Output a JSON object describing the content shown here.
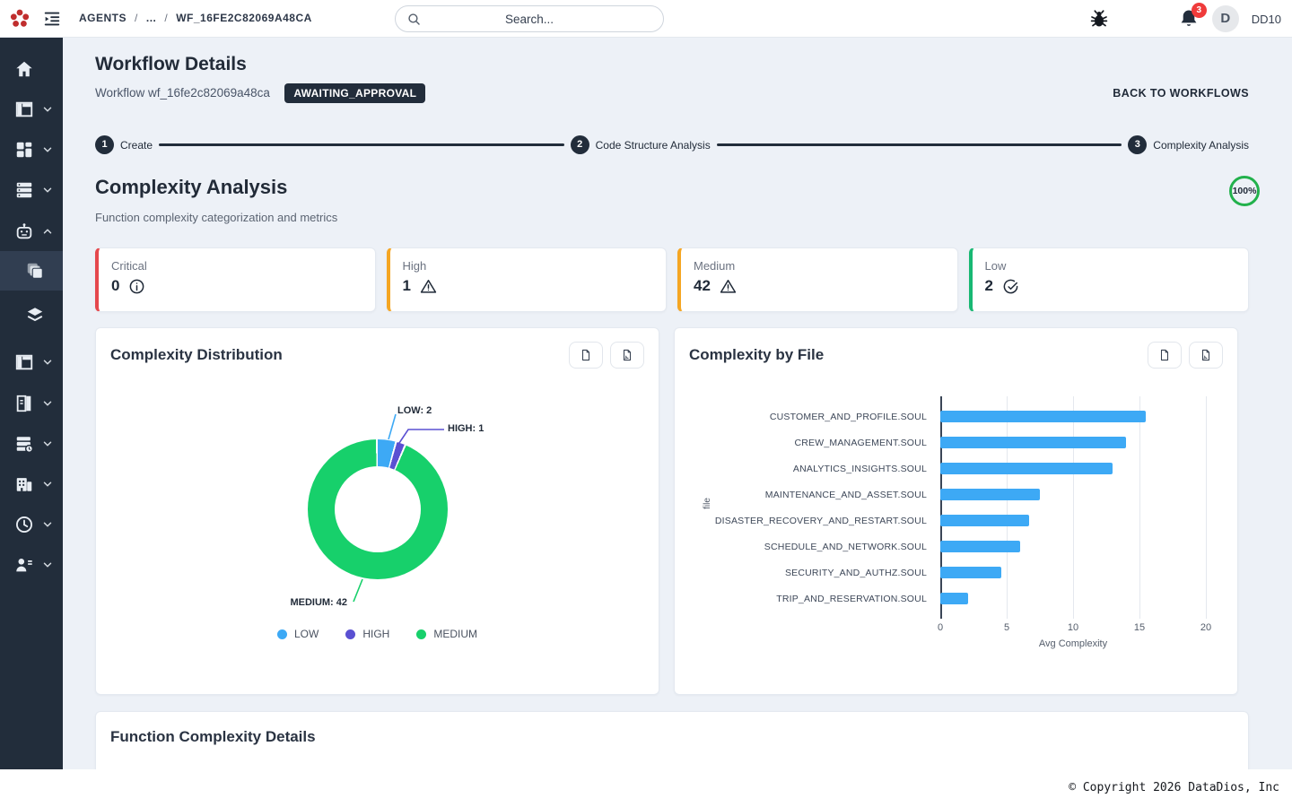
{
  "navbar": {
    "breadcrumb": [
      "AGENTS",
      "...",
      "WF_16FE2C82069A48CA"
    ],
    "breadcrumb_separator": "/",
    "search_placeholder": "Search...",
    "notification_count": "3",
    "avatar_initial": "D",
    "username": "DD10"
  },
  "sidebar": {
    "items": [
      {
        "id": "home",
        "icon": "home-icon"
      },
      {
        "id": "panels",
        "icon": "panel-layout-icon",
        "chevron": "down"
      },
      {
        "id": "apps",
        "icon": "grid-icon",
        "chevron": "down"
      },
      {
        "id": "servers",
        "icon": "server-icon",
        "chevron": "down"
      },
      {
        "id": "agents",
        "icon": "robot-icon",
        "chevron": "up"
      },
      {
        "id": "workflows",
        "icon": "copies-icon",
        "child": true,
        "active": true
      },
      {
        "id": "layers",
        "icon": "layers-icon",
        "child": true
      },
      {
        "id": "boards",
        "icon": "panel-layout-icon",
        "chevron": "down"
      },
      {
        "id": "journal",
        "icon": "book-icon",
        "chevron": "down"
      },
      {
        "id": "datastore",
        "icon": "database-icon",
        "chevron": "down"
      },
      {
        "id": "organization",
        "icon": "building-icon",
        "chevron": "down"
      },
      {
        "id": "history",
        "icon": "clock-icon",
        "chevron": "down"
      },
      {
        "id": "team",
        "icon": "user-list-icon",
        "chevron": "down"
      }
    ]
  },
  "header": {
    "title": "Workflow Details",
    "workflow_id_text": "Workflow wf_16fe2c82069a48ca",
    "status_badge": "AWAITING_APPROVAL",
    "back_link": "BACK TO WORKFLOWS"
  },
  "stepper": {
    "steps": [
      {
        "number": "1",
        "label": "Create"
      },
      {
        "number": "2",
        "label": "Code Structure Analysis"
      },
      {
        "number": "3",
        "label": "Complexity Analysis"
      }
    ]
  },
  "section": {
    "title": "Complexity Analysis",
    "subtitle": "Function complexity categorization and metrics",
    "progress": "100%",
    "progress_color": "#22b14c"
  },
  "stats": [
    {
      "label": "Critical",
      "value": "0",
      "icon": "info-circle-icon",
      "accent": "#e5484d"
    },
    {
      "label": "High",
      "value": "1",
      "icon": "warning-triangle-icon",
      "accent": "#f5a623"
    },
    {
      "label": "Medium",
      "value": "42",
      "icon": "warning-triangle-icon",
      "accent": "#f5a623"
    },
    {
      "label": "Low",
      "value": "2",
      "icon": "check-circle-icon",
      "accent": "#18b873"
    }
  ],
  "export_buttons": {
    "file_icon": "export-file-icon",
    "pdf_icon": "export-pdf-icon"
  },
  "chart_data": [
    {
      "type": "pie",
      "donut": true,
      "title": "Complexity Distribution",
      "labels": [
        "LOW",
        "HIGH",
        "MEDIUM"
      ],
      "values": [
        2,
        1,
        42
      ],
      "colors": [
        "#3da9f5",
        "#5a50d2",
        "#17d06b"
      ],
      "callouts": [
        "LOW: 2",
        "HIGH: 1",
        "MEDIUM: 42"
      ],
      "legend_position": "bottom"
    },
    {
      "type": "bar",
      "orientation": "horizontal",
      "title": "Complexity by File",
      "categories": [
        "CUSTOMER_AND_PROFILE.SOUL",
        "CREW_MANAGEMENT.SOUL",
        "ANALYTICS_INSIGHTS.SOUL",
        "MAINTENANCE_AND_ASSET.SOUL",
        "DISASTER_RECOVERY_AND_RESTART.SOUL",
        "SCHEDULE_AND_NETWORK.SOUL",
        "SECURITY_AND_AUTHZ.SOUL",
        "TRIP_AND_RESERVATION.SOUL"
      ],
      "values": [
        15.5,
        14,
        13,
        7.5,
        6.7,
        6,
        4.6,
        2.1
      ],
      "bar_color": "#3da9f5",
      "xlabel": "Avg Complexity",
      "ylabel": "file",
      "xlim": [
        0,
        20
      ],
      "xticks": [
        0,
        5,
        10,
        15,
        20
      ],
      "grid": true
    }
  ],
  "details_card": {
    "title": "Function Complexity Details"
  },
  "footer": {
    "copyright": "© Copyright 2026 DataDios, Inc"
  }
}
